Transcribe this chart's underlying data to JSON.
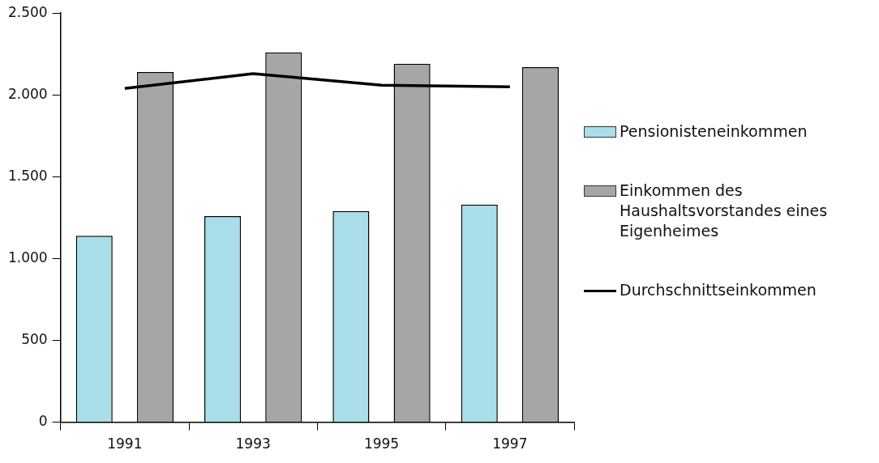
{
  "chart_data": {
    "type": "bar",
    "categories": [
      "1991",
      "1993",
      "1995",
      "1997"
    ],
    "series": [
      {
        "name": "Pensionisteneinkommen",
        "color": "#a9dde8",
        "values": [
          1140,
          1260,
          1290,
          1330
        ]
      },
      {
        "name": "Einkommen des Haushaltsvorstandes eines Eigenheimes",
        "color": "#a6a6a6",
        "values": [
          2140,
          2260,
          2190,
          2170
        ]
      },
      {
        "name": "Durchschnittseinkommen",
        "type": "line",
        "color": "#000000",
        "values": [
          2040,
          2130,
          2060,
          2050
        ]
      }
    ],
    "ylim": [
      0,
      2500
    ],
    "yticks": [
      {
        "value": 0,
        "label": "0"
      },
      {
        "value": 500,
        "label": "500"
      },
      {
        "value": 1000,
        "label": "1.000"
      },
      {
        "value": 1500,
        "label": "1.500"
      },
      {
        "value": 2000,
        "label": "2.000"
      },
      {
        "value": 2500,
        "label": "2.500"
      }
    ],
    "grid": false,
    "legend": "right",
    "marker": "none"
  }
}
